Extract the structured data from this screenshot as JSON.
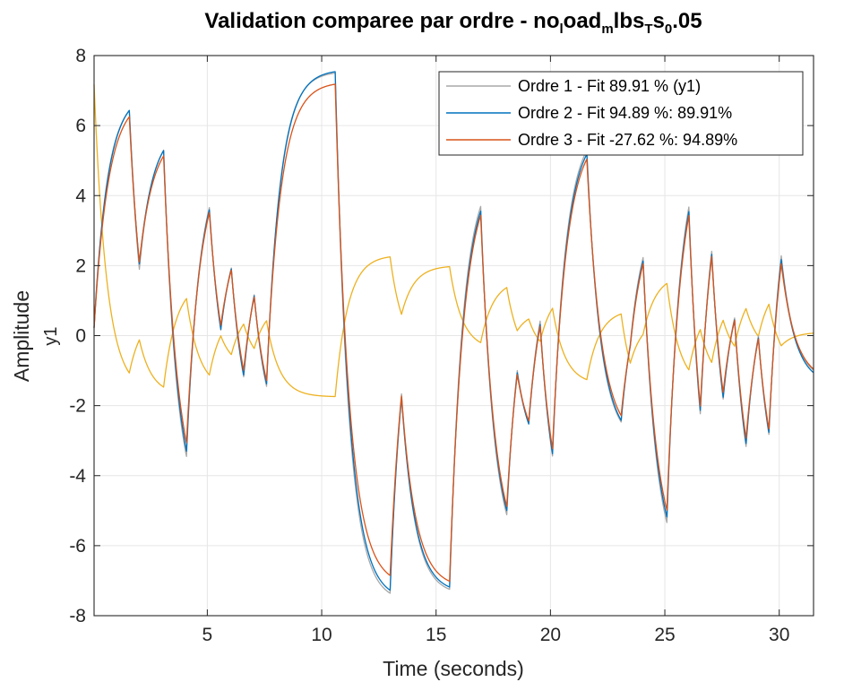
{
  "chart_data": {
    "type": "line",
    "title_parts": [
      {
        "text": "Validation comparee par ordre - no",
        "style": "normal"
      },
      {
        "text": "l",
        "style": "sub"
      },
      {
        "text": "oad",
        "style": "normal"
      },
      {
        "text": "m",
        "style": "sub"
      },
      {
        "text": "lbs",
        "style": "normal"
      },
      {
        "text": "T",
        "style": "sub"
      },
      {
        "text": "s",
        "style": "normal"
      },
      {
        "text": "0",
        "style": "sub"
      },
      {
        "text": ".05",
        "style": "normal"
      }
    ],
    "xlabel": "Time (seconds)",
    "ylabel": "Amplitude",
    "output_label": "y1",
    "xlim": [
      0.05,
      31.5
    ],
    "ylim": [
      -8,
      8
    ],
    "xticks": [
      5,
      10,
      15,
      20,
      25,
      30
    ],
    "yticks": [
      -8,
      -6,
      -4,
      -2,
      0,
      2,
      4,
      6,
      8
    ],
    "grid": true,
    "legend_position": "top-right",
    "switch_times": [
      1.6,
      2.05,
      3.1,
      4.1,
      5.1,
      5.6,
      6.05,
      6.6,
      7.05,
      7.6,
      10.6,
      13.0,
      13.5,
      15.6,
      16.95,
      18.1,
      18.55,
      19.05,
      19.55,
      20.1,
      21.6,
      23.1,
      23.5,
      24.05,
      25.1,
      26.05,
      26.55,
      27.05,
      27.55,
      28.05,
      28.55,
      29.1,
      29.55,
      30.1,
      31.05
    ],
    "series": [
      {
        "name": "Ordre 1 - Fit 89.91 % (y1)",
        "color": "#a8a8a8",
        "tau": 0.58,
        "levels": [
          6.9,
          -2.1,
          5.95,
          -5.35,
          5.2,
          -2.4,
          3.4,
          -3.2,
          3.1,
          -3.15,
          7.55,
          -7.6,
          2.5,
          -7.4,
          4.85,
          -6.55,
          2.4,
          -3.6,
          2.55,
          -5.95,
          6.0,
          -3.1,
          2.0,
          3.75,
          -6.85,
          5.8,
          -6.55,
          5.8,
          -4.9,
          2.2,
          -5.85,
          2.05,
          -5.15,
          5.6,
          -1.3
        ]
      },
      {
        "name": "Ordre 2 - Fit 94.89 %: 89.91%",
        "color": "#0072bd",
        "tau": 0.6,
        "levels": [
          6.95,
          -2.0,
          5.95,
          -5.3,
          5.2,
          -2.45,
          3.4,
          -3.2,
          3.1,
          -3.1,
          7.6,
          -7.55,
          2.45,
          -7.35,
          4.8,
          -6.5,
          2.35,
          -3.65,
          2.5,
          -5.9,
          5.95,
          -3.1,
          1.95,
          3.7,
          -6.75,
          5.75,
          -6.5,
          5.75,
          -4.9,
          2.15,
          -5.8,
          2.0,
          -5.1,
          5.55,
          -1.4
        ]
      },
      {
        "name": "Ordre 3 - Fit -27.62 %: 94.89%",
        "color": "#d95319",
        "tau": 0.62,
        "levels": [
          6.8,
          -1.9,
          5.8,
          -5.1,
          5.15,
          -2.3,
          3.3,
          -3.05,
          3.0,
          -3.0,
          7.25,
          -7.15,
          2.4,
          -7.2,
          4.75,
          -6.45,
          2.3,
          -3.5,
          2.45,
          -5.75,
          5.85,
          -3.0,
          1.9,
          3.65,
          -6.6,
          5.7,
          -6.4,
          5.7,
          -4.75,
          2.1,
          -5.65,
          1.95,
          -5.0,
          5.45,
          -1.3
        ]
      },
      {
        "name": "",
        "color": "#edb120",
        "tau": 0.55,
        "start_value": 7.5,
        "levels": [
          -1.6,
          0.65,
          -1.7,
          1.55,
          -1.55,
          0.75,
          -0.95,
          0.85,
          -0.9,
          0.9,
          -1.75,
          2.3,
          -0.5,
          2.0,
          -0.4,
          1.6,
          -0.8,
          0.7,
          -0.6,
          1.35,
          -1.4,
          0.75,
          -2.1,
          0.5,
          1.75,
          -1.5,
          0.95,
          -1.4,
          1.25,
          -0.8,
          1.5,
          -0.5,
          1.6,
          -1.0,
          0.1
        ]
      }
    ]
  }
}
